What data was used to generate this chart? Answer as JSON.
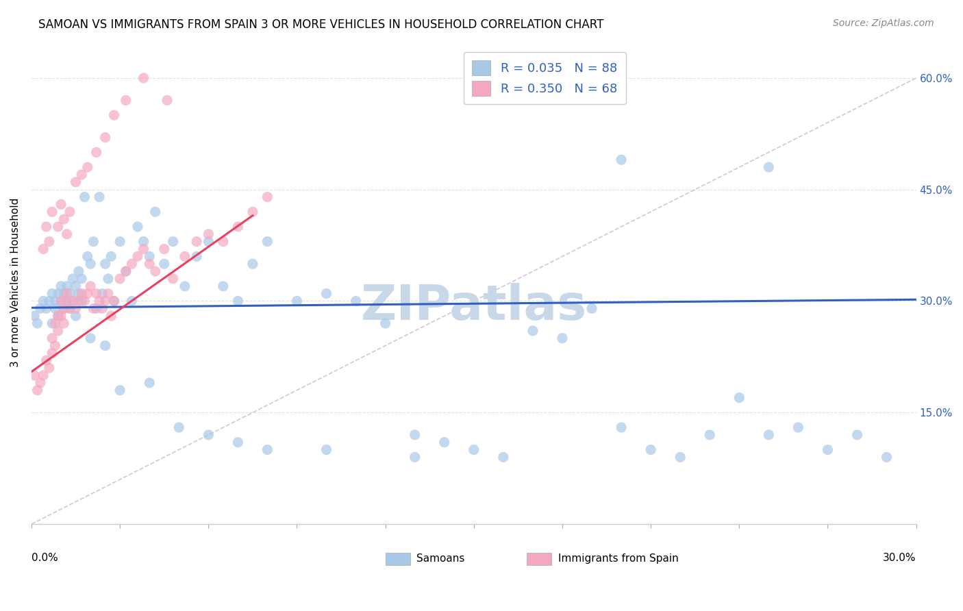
{
  "title": "SAMOAN VS IMMIGRANTS FROM SPAIN 3 OR MORE VEHICLES IN HOUSEHOLD CORRELATION CHART",
  "source": "Source: ZipAtlas.com",
  "ylabel": "3 or more Vehicles in Household",
  "yaxis_ticks": [
    "15.0%",
    "30.0%",
    "45.0%",
    "60.0%"
  ],
  "samoans_color": "#a8c8e8",
  "spain_color": "#f4a8c0",
  "trend_blue_color": "#3060c0",
  "trend_pink_color": "#e84060",
  "trend_diag_color": "#c8b8c8",
  "watermark": "ZIPatlas",
  "xlim": [
    0.0,
    0.3
  ],
  "ylim": [
    0.0,
    0.65
  ],
  "samoans_x": [
    0.001,
    0.002,
    0.003,
    0.004,
    0.005,
    0.006,
    0.007,
    0.007,
    0.008,
    0.008,
    0.009,
    0.009,
    0.01,
    0.01,
    0.011,
    0.011,
    0.012,
    0.012,
    0.013,
    0.013,
    0.014,
    0.014,
    0.015,
    0.015,
    0.016,
    0.016,
    0.017,
    0.017,
    0.018,
    0.019,
    0.02,
    0.021,
    0.022,
    0.023,
    0.024,
    0.025,
    0.026,
    0.027,
    0.028,
    0.03,
    0.032,
    0.034,
    0.036,
    0.038,
    0.04,
    0.042,
    0.045,
    0.048,
    0.052,
    0.056,
    0.06,
    0.065,
    0.07,
    0.075,
    0.08,
    0.09,
    0.1,
    0.11,
    0.12,
    0.13,
    0.14,
    0.15,
    0.16,
    0.17,
    0.18,
    0.19,
    0.2,
    0.21,
    0.22,
    0.23,
    0.24,
    0.25,
    0.26,
    0.27,
    0.28,
    0.29,
    0.02,
    0.025,
    0.03,
    0.04,
    0.05,
    0.06,
    0.07,
    0.08,
    0.1,
    0.13,
    0.2,
    0.25
  ],
  "samoans_y": [
    0.28,
    0.27,
    0.29,
    0.3,
    0.29,
    0.3,
    0.27,
    0.31,
    0.3,
    0.29,
    0.31,
    0.28,
    0.3,
    0.32,
    0.29,
    0.31,
    0.3,
    0.32,
    0.31,
    0.29,
    0.33,
    0.3,
    0.32,
    0.28,
    0.34,
    0.31,
    0.3,
    0.33,
    0.44,
    0.36,
    0.35,
    0.38,
    0.29,
    0.44,
    0.31,
    0.35,
    0.33,
    0.36,
    0.3,
    0.38,
    0.34,
    0.3,
    0.4,
    0.38,
    0.36,
    0.42,
    0.35,
    0.38,
    0.32,
    0.36,
    0.38,
    0.32,
    0.3,
    0.35,
    0.38,
    0.3,
    0.31,
    0.3,
    0.27,
    0.12,
    0.11,
    0.1,
    0.09,
    0.26,
    0.25,
    0.29,
    0.13,
    0.1,
    0.09,
    0.12,
    0.17,
    0.12,
    0.13,
    0.1,
    0.12,
    0.09,
    0.25,
    0.24,
    0.18,
    0.19,
    0.13,
    0.12,
    0.11,
    0.1,
    0.1,
    0.09,
    0.49,
    0.48
  ],
  "spain_x": [
    0.001,
    0.002,
    0.003,
    0.004,
    0.005,
    0.006,
    0.007,
    0.007,
    0.008,
    0.008,
    0.009,
    0.009,
    0.01,
    0.01,
    0.011,
    0.011,
    0.012,
    0.012,
    0.013,
    0.014,
    0.015,
    0.016,
    0.017,
    0.018,
    0.019,
    0.02,
    0.021,
    0.022,
    0.023,
    0.024,
    0.025,
    0.026,
    0.027,
    0.028,
    0.03,
    0.032,
    0.034,
    0.036,
    0.038,
    0.04,
    0.042,
    0.045,
    0.048,
    0.052,
    0.056,
    0.06,
    0.065,
    0.07,
    0.075,
    0.08,
    0.004,
    0.005,
    0.006,
    0.007,
    0.009,
    0.01,
    0.011,
    0.012,
    0.013,
    0.015,
    0.017,
    0.019,
    0.022,
    0.025,
    0.028,
    0.032,
    0.038,
    0.046
  ],
  "spain_y": [
    0.2,
    0.18,
    0.19,
    0.2,
    0.22,
    0.21,
    0.23,
    0.25,
    0.24,
    0.27,
    0.26,
    0.28,
    0.28,
    0.3,
    0.27,
    0.29,
    0.3,
    0.31,
    0.29,
    0.3,
    0.29,
    0.3,
    0.31,
    0.3,
    0.31,
    0.32,
    0.29,
    0.31,
    0.3,
    0.29,
    0.3,
    0.31,
    0.28,
    0.3,
    0.33,
    0.34,
    0.35,
    0.36,
    0.37,
    0.35,
    0.34,
    0.37,
    0.33,
    0.36,
    0.38,
    0.39,
    0.38,
    0.4,
    0.42,
    0.44,
    0.37,
    0.4,
    0.38,
    0.42,
    0.4,
    0.43,
    0.41,
    0.39,
    0.42,
    0.46,
    0.47,
    0.48,
    0.5,
    0.52,
    0.55,
    0.57,
    0.6,
    0.57
  ],
  "samoans_trend_x": [
    0.0,
    0.3
  ],
  "samoans_trend_y": [
    0.291,
    0.302
  ],
  "spain_trend_x": [
    0.0,
    0.075
  ],
  "spain_trend_y": [
    0.205,
    0.415
  ],
  "diag_trend_x": [
    0.0,
    0.3
  ],
  "diag_trend_y": [
    0.0,
    0.6
  ],
  "grid_color": "#e0e0e0",
  "background_color": "#ffffff",
  "title_fontsize": 12,
  "axis_label_fontsize": 11,
  "tick_fontsize": 11,
  "legend_fontsize": 13,
  "watermark_fontsize": 52,
  "watermark_color": "#c8d8e8",
  "source_fontsize": 10
}
